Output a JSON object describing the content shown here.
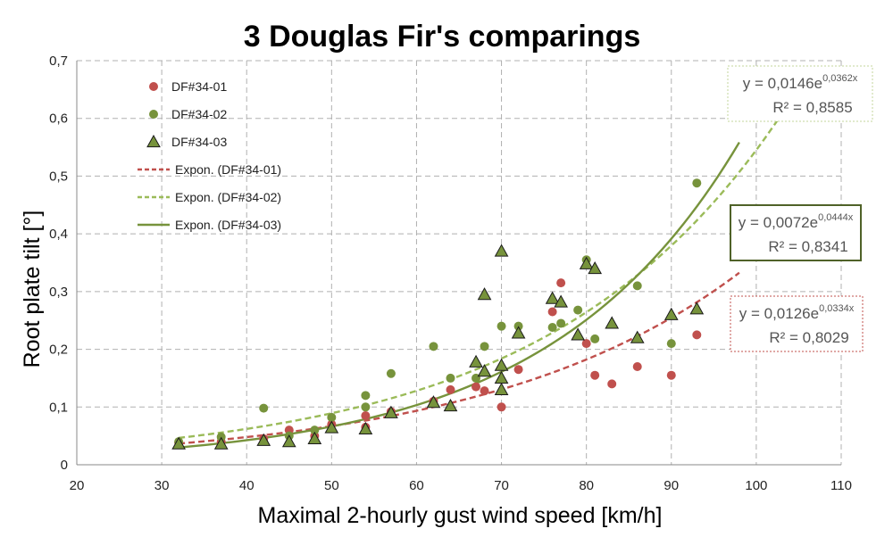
{
  "chart_data": {
    "type": "scatter",
    "title": "3 Douglas Fir's comparings",
    "xlabel": "Maximal 2-hourly gust wind speed [km/h]",
    "ylabel": "Root plate tilt [°]",
    "xlim": [
      20,
      110
    ],
    "ylim": [
      0,
      0.7
    ],
    "xticks": [
      20,
      30,
      40,
      50,
      60,
      70,
      80,
      90,
      100,
      110
    ],
    "yticks": [
      0,
      0.1,
      0.2,
      0.3,
      0.4,
      0.5,
      0.6,
      0.7
    ],
    "xtick_labels": [
      "20",
      "30",
      "40",
      "50",
      "60",
      "70",
      "80",
      "90",
      "100",
      "110"
    ],
    "ytick_labels": [
      "0",
      "0,1",
      "0,2",
      "0,3",
      "0,4",
      "0,5",
      "0,6",
      "0,7"
    ],
    "grid": true,
    "legend_position": "top-left",
    "series": [
      {
        "name": "DF#34-01",
        "marker": "circle",
        "color": "#c0504d",
        "points": [
          [
            32,
            0.038
          ],
          [
            37,
            0.04
          ],
          [
            42,
            0.045
          ],
          [
            45,
            0.06
          ],
          [
            48,
            0.05
          ],
          [
            50,
            0.07
          ],
          [
            54,
            0.065
          ],
          [
            54,
            0.085
          ],
          [
            57,
            0.092
          ],
          [
            62,
            0.11
          ],
          [
            64,
            0.13
          ],
          [
            67,
            0.135
          ],
          [
            68,
            0.128
          ],
          [
            70,
            0.1
          ],
          [
            72,
            0.165
          ],
          [
            76,
            0.265
          ],
          [
            77,
            0.315
          ],
          [
            80,
            0.21
          ],
          [
            81,
            0.155
          ],
          [
            83,
            0.14
          ],
          [
            86,
            0.17
          ],
          [
            90,
            0.155
          ],
          [
            93,
            0.225
          ]
        ]
      },
      {
        "name": "DF#34-02",
        "marker": "circle",
        "color": "#77933c",
        "points": [
          [
            32,
            0.04
          ],
          [
            37,
            0.048
          ],
          [
            42,
            0.098
          ],
          [
            45,
            0.05
          ],
          [
            48,
            0.06
          ],
          [
            50,
            0.082
          ],
          [
            54,
            0.1
          ],
          [
            54,
            0.12
          ],
          [
            57,
            0.158
          ],
          [
            62,
            0.205
          ],
          [
            64,
            0.15
          ],
          [
            67,
            0.15
          ],
          [
            68,
            0.205
          ],
          [
            70,
            0.24
          ],
          [
            72,
            0.24
          ],
          [
            76,
            0.238
          ],
          [
            77,
            0.245
          ],
          [
            79,
            0.268
          ],
          [
            80,
            0.355
          ],
          [
            81,
            0.218
          ],
          [
            86,
            0.31
          ],
          [
            90,
            0.21
          ],
          [
            93,
            0.488
          ]
        ]
      },
      {
        "name": "DF#34-03",
        "marker": "triangle",
        "color": "#77933c",
        "points": [
          [
            32,
            0.036
          ],
          [
            37,
            0.036
          ],
          [
            42,
            0.042
          ],
          [
            45,
            0.04
          ],
          [
            48,
            0.045
          ],
          [
            50,
            0.064
          ],
          [
            54,
            0.062
          ],
          [
            57,
            0.09
          ],
          [
            62,
            0.108
          ],
          [
            64,
            0.102
          ],
          [
            67,
            0.178
          ],
          [
            68,
            0.162
          ],
          [
            68,
            0.295
          ],
          [
            70,
            0.13
          ],
          [
            70,
            0.15
          ],
          [
            70,
            0.172
          ],
          [
            70,
            0.37
          ],
          [
            72,
            0.228
          ],
          [
            76,
            0.288
          ],
          [
            77,
            0.282
          ],
          [
            79,
            0.225
          ],
          [
            80,
            0.348
          ],
          [
            81,
            0.34
          ],
          [
            83,
            0.245
          ],
          [
            86,
            0.22
          ],
          [
            90,
            0.26
          ],
          [
            93,
            0.27
          ]
        ]
      }
    ],
    "trendlines": [
      {
        "name": "Expon. (DF#34-01)",
        "a": 0.0126,
        "b": 0.0334,
        "x_range": [
          32,
          98
        ],
        "color": "#c0504d",
        "dash": "dashed"
      },
      {
        "name": "Expon. (DF#34-02)",
        "a": 0.0146,
        "b": 0.0362,
        "x_range": [
          32,
          103
        ],
        "color": "#9bbb59",
        "dash": "dashed"
      },
      {
        "name": "Expon. (DF#34-03)",
        "a": 0.0072,
        "b": 0.0444,
        "x_range": [
          32,
          98
        ],
        "color": "#77933c",
        "dash": "solid"
      }
    ],
    "equations": [
      {
        "eq_prefix": "y = 0,0146e",
        "eq_exp": "0,0362x",
        "r2": "R² = 0,8585",
        "border": "#c3d69b"
      },
      {
        "eq_prefix": "y = 0,0072e",
        "eq_exp": "0,0444x",
        "r2": "R² = 0,8341",
        "border": "#4f6228"
      },
      {
        "eq_prefix": "y = 0,0126e",
        "eq_exp": "0,0334x",
        "r2": "R² = 0,8029",
        "border": "#c0504d"
      }
    ]
  }
}
